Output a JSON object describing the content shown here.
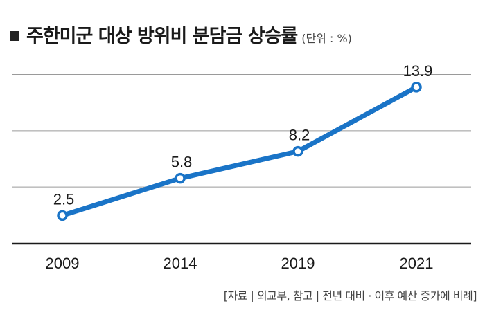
{
  "chart_data": {
    "type": "line",
    "title": "주한미군 대상 방위비 분담금 상승률",
    "unit": "(단위 : %)",
    "categories": [
      "2009",
      "2014",
      "2019",
      "2021"
    ],
    "series": [
      {
        "values": [
          2.5,
          5.8,
          8.2,
          13.9
        ]
      }
    ],
    "data_labels": [
      "2.5",
      "5.8",
      "8.2",
      "13.9"
    ],
    "ylim": [
      0,
      15
    ],
    "grid": true,
    "source": "[자료 | 외교부, 참고 | 전년 대비 · 이후 예산 증가에 비례]",
    "line_color": "#1a74c7",
    "marker_fill": "#ffffff",
    "grid_color": "#9a9a9a"
  }
}
